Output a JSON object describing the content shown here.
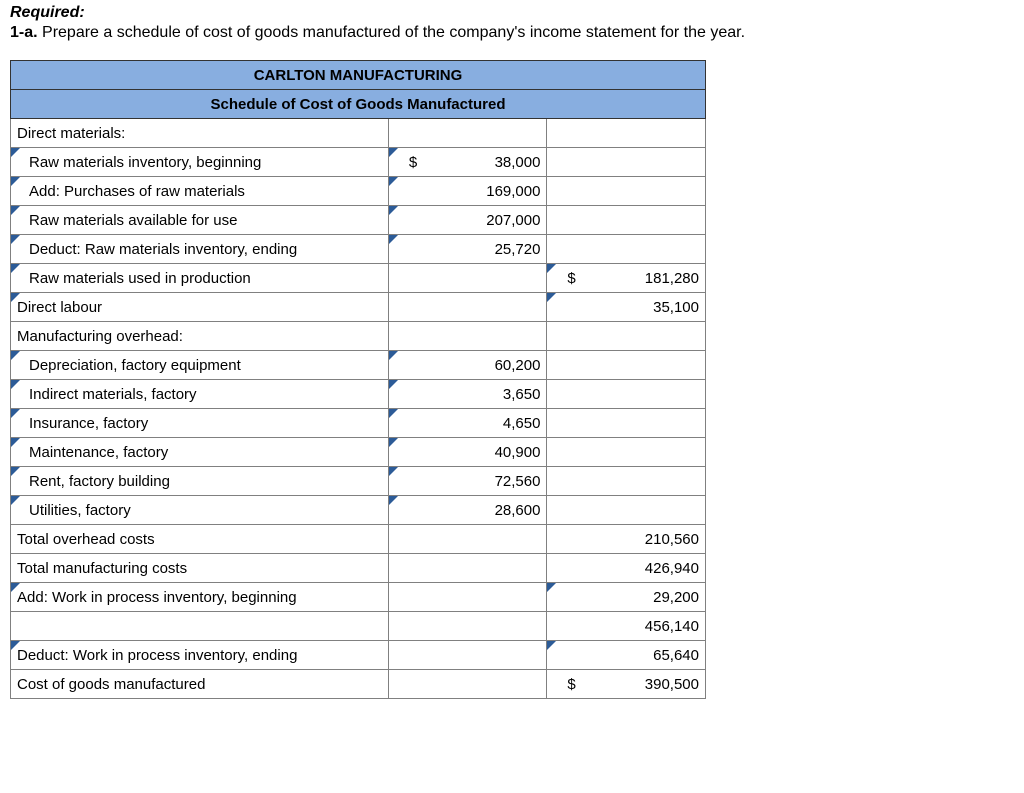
{
  "heading": {
    "required": "Required:",
    "number": "1-a.",
    "text": " Prepare a schedule of cost of goods manufactured of the company's income statement for the year."
  },
  "table": {
    "title": "CARLTON MANUFACTURING",
    "subtitle": "Schedule of Cost of Goods Manufactured",
    "currency": "$",
    "rows": [
      {
        "label": "Direct materials:",
        "indent": false,
        "tri_label": false
      },
      {
        "label": "Raw materials inventory, beginning",
        "indent": true,
        "tri_label": true,
        "col1_currency": true,
        "col1_value": "38,000",
        "tri_col1": true
      },
      {
        "label": "Add: Purchases of raw materials",
        "indent": true,
        "tri_label": true,
        "col1_value": "169,000",
        "tri_col1": true
      },
      {
        "label": "Raw materials available for use",
        "indent": true,
        "tri_label": true,
        "col1_value": "207,000",
        "tri_col1": true
      },
      {
        "label": "Deduct: Raw materials inventory, ending",
        "indent": true,
        "tri_label": true,
        "col1_value": "25,720",
        "tri_col1": true
      },
      {
        "label": "Raw materials used in production",
        "indent": true,
        "tri_label": true,
        "col2_currency": true,
        "col2_value": "181,280",
        "tri_col2": true
      },
      {
        "label": "Direct labour",
        "indent": false,
        "tri_label": true,
        "col2_value": "35,100",
        "tri_col2": true
      },
      {
        "label": "Manufacturing overhead:",
        "indent": false,
        "tri_label": false
      },
      {
        "label": "Depreciation, factory equipment",
        "indent": true,
        "tri_label": true,
        "col1_value": "60,200",
        "tri_col1": true
      },
      {
        "label": "Indirect materials, factory",
        "indent": true,
        "tri_label": true,
        "col1_value": "3,650",
        "tri_col1": true
      },
      {
        "label": "Insurance, factory",
        "indent": true,
        "tri_label": true,
        "col1_value": "4,650",
        "tri_col1": true
      },
      {
        "label": "Maintenance, factory",
        "indent": true,
        "tri_label": true,
        "col1_value": "40,900",
        "tri_col1": true
      },
      {
        "label": "Rent, factory building",
        "indent": true,
        "tri_label": true,
        "col1_value": "72,560",
        "tri_col1": true
      },
      {
        "label": "Utilities, factory",
        "indent": true,
        "tri_label": true,
        "col1_value": "28,600",
        "tri_col1": true
      },
      {
        "label": "Total overhead costs",
        "indent": false,
        "tri_label": false,
        "col2_value": "210,560"
      },
      {
        "label": "Total manufacturing costs",
        "indent": false,
        "tri_label": false,
        "col2_value": "426,940"
      },
      {
        "label": "Add: Work in process inventory, beginning",
        "indent": false,
        "tri_label": true,
        "col2_value": "29,200",
        "tri_col2": true
      },
      {
        "label": "",
        "indent": false,
        "tri_label": false,
        "col2_value": "456,140"
      },
      {
        "label": "Deduct: Work in process inventory, ending",
        "indent": false,
        "tri_label": true,
        "col2_value": "65,640",
        "tri_col2": true
      },
      {
        "label": "Cost of goods manufactured",
        "indent": false,
        "tri_label": false,
        "col2_currency": true,
        "col2_value": "390,500"
      }
    ]
  },
  "colors": {
    "header_bg": "#88aee0",
    "triangle": "#2c5b97",
    "border": "#808080"
  }
}
